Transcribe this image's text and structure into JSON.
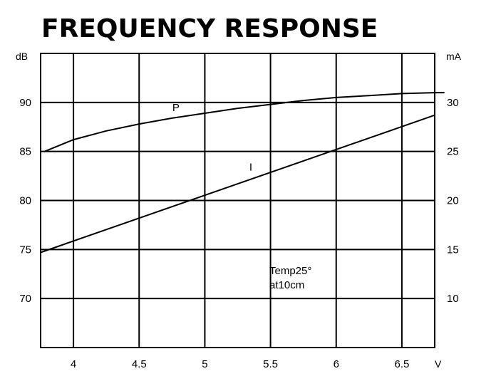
{
  "chart_data": {
    "type": "line",
    "title": "FREQUENCY RESPONSE",
    "xlabel": "V",
    "ylabel": "dB",
    "y2label": "mA",
    "x_ticks": [
      "4",
      "4.5",
      "5",
      "5.5",
      "6",
      "6.5"
    ],
    "y_ticks": [
      "90",
      "85",
      "80",
      "75",
      "70"
    ],
    "y2_ticks": [
      "30",
      "25",
      "20",
      "15",
      "10"
    ],
    "xlim": [
      3.75,
      6.75
    ],
    "ylim": [
      65,
      95
    ],
    "y2lim": [
      5,
      35
    ],
    "grid": true,
    "series": [
      {
        "name": "P",
        "axis": "left",
        "x": [
          3.78,
          4.0,
          4.25,
          4.5,
          4.75,
          5.0,
          5.25,
          5.5,
          5.75,
          6.0,
          6.25,
          6.5,
          6.75,
          6.82
        ],
        "y": [
          85.0,
          86.2,
          87.1,
          87.8,
          88.4,
          88.9,
          89.4,
          89.8,
          90.2,
          90.5,
          90.7,
          90.9,
          91.0,
          91.0
        ]
      },
      {
        "name": "I",
        "axis": "right",
        "x": [
          3.75,
          6.75
        ],
        "y": [
          14.7,
          28.7
        ]
      }
    ],
    "annotations": [
      "Temp25°",
      "at10cm"
    ],
    "colors": {
      "line": "#000000",
      "grid": "#000000",
      "background": "#ffffff"
    }
  }
}
